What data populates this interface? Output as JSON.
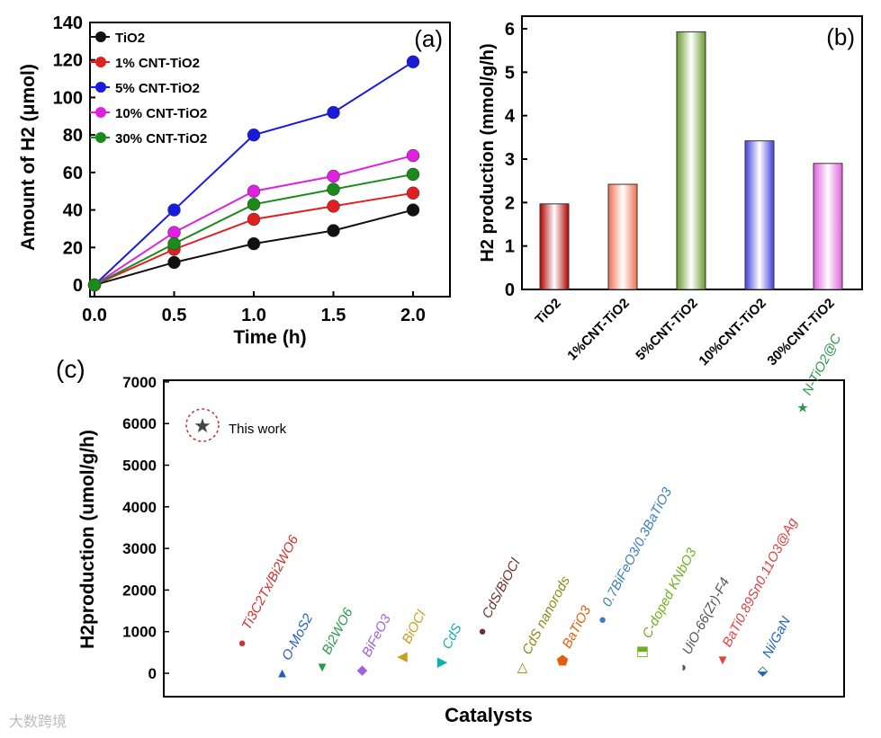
{
  "chart_data": [
    {
      "type": "line",
      "panel_label": "(a)",
      "xlabel": "Time (h)",
      "ylabel": "Amount of H2 (μmol)",
      "xlim": [
        0,
        2.1
      ],
      "ylim": [
        -5,
        140
      ],
      "xticks": [
        "0.0",
        "0.5",
        "1.0",
        "1.5",
        "2.0"
      ],
      "yticks": [
        "0",
        "20",
        "40",
        "60",
        "80",
        "100",
        "120",
        "140"
      ],
      "x": [
        0,
        0.5,
        1.0,
        1.5,
        2.0
      ],
      "legend_position": "top-left",
      "series": [
        {
          "name": "TiO2",
          "color": "#111111",
          "values": [
            0,
            12,
            22,
            29,
            40
          ]
        },
        {
          "name": "1% CNT-TiO2",
          "color": "#e02020",
          "values": [
            0,
            19,
            35,
            42,
            49
          ]
        },
        {
          "name": "5% CNT-TiO2",
          "color": "#1a1adc",
          "values": [
            0,
            40,
            80,
            92,
            119
          ]
        },
        {
          "name": "10% CNT-TiO2",
          "color": "#e020e0",
          "values": [
            0,
            28,
            50,
            58,
            69
          ]
        },
        {
          "name": "30% CNT-TiO2",
          "color": "#1a8a1a",
          "values": [
            0,
            22,
            43,
            51,
            59
          ]
        }
      ]
    },
    {
      "type": "bar",
      "panel_label": "(b)",
      "ylabel": "H2 production (mmol/g/h)",
      "ylim": [
        0,
        6
      ],
      "yticks": [
        "0",
        "1",
        "2",
        "3",
        "4",
        "5",
        "6"
      ],
      "categories": [
        "TiO2",
        "1%CNT-TiO2",
        "5%CNT-TiO2",
        "10%CNT-TiO2",
        "30%CNT-TiO2"
      ],
      "values": [
        1.97,
        2.42,
        5.93,
        3.42,
        2.9
      ],
      "colors": [
        "#b00000",
        "#f07050",
        "#6a9a30",
        "#4040e0",
        "#e060e0"
      ]
    },
    {
      "type": "scatter",
      "panel_label": "(c)",
      "xlabel": "Catalysts",
      "ylabel": "H2production (umol/g/h)",
      "ylim": [
        0,
        7000
      ],
      "yticks": [
        "0",
        "1000",
        "2000",
        "3000",
        "4000",
        "5000",
        "6000",
        "7000"
      ],
      "legend": "This work",
      "points": [
        {
          "name": "Ti3C2Tx/Bi2WO6",
          "value": 760,
          "color": "#d03030",
          "marker": "circle"
        },
        {
          "name": "O-MoS2",
          "value": 30,
          "color": "#1f5fc0",
          "marker": "triangle-up"
        },
        {
          "name": "Bi2WO6",
          "value": 170,
          "color": "#2a9a4a",
          "marker": "triangle-down"
        },
        {
          "name": "BiFeO3",
          "value": 110,
          "color": "#a060e0",
          "marker": "diamond"
        },
        {
          "name": "BiOCl",
          "value": 430,
          "color": "#c8a020",
          "marker": "triangle-left"
        },
        {
          "name": "CdS",
          "value": 300,
          "color": "#10b0b0",
          "marker": "triangle-right"
        },
        {
          "name": "CdS/BiOCl",
          "value": 1040,
          "color": "#703030",
          "marker": "circle"
        },
        {
          "name": "CdS nanorods",
          "value": 170,
          "color": "#8a8a10",
          "marker": "triangle-up-open"
        },
        {
          "name": "BaTiO3",
          "value": 320,
          "color": "#e06010",
          "marker": "pentagon"
        },
        {
          "name": "0.7BiFeO3/0.3BaTiO3",
          "value": 1320,
          "color": "#3a80c0",
          "marker": "circle"
        },
        {
          "name": "C-doped KNbO3",
          "value": 560,
          "color": "#70b020",
          "marker": "square-half"
        },
        {
          "name": "UiO-66(Zr)-F4",
          "value": 170,
          "color": "#555555",
          "marker": "circle-half"
        },
        {
          "name": "BaTi0.89Sn0.11O3@Ag",
          "value": 350,
          "color": "#e04040",
          "marker": "triangle-down-half"
        },
        {
          "name": "Ni/GaN",
          "value": 90,
          "color": "#2060c0",
          "marker": "diamond-half"
        },
        {
          "name": "N-TiO2@C",
          "value": 6400,
          "color": "#2a9a4a",
          "marker": "star"
        }
      ]
    }
  ],
  "watermark": "大数跨境"
}
